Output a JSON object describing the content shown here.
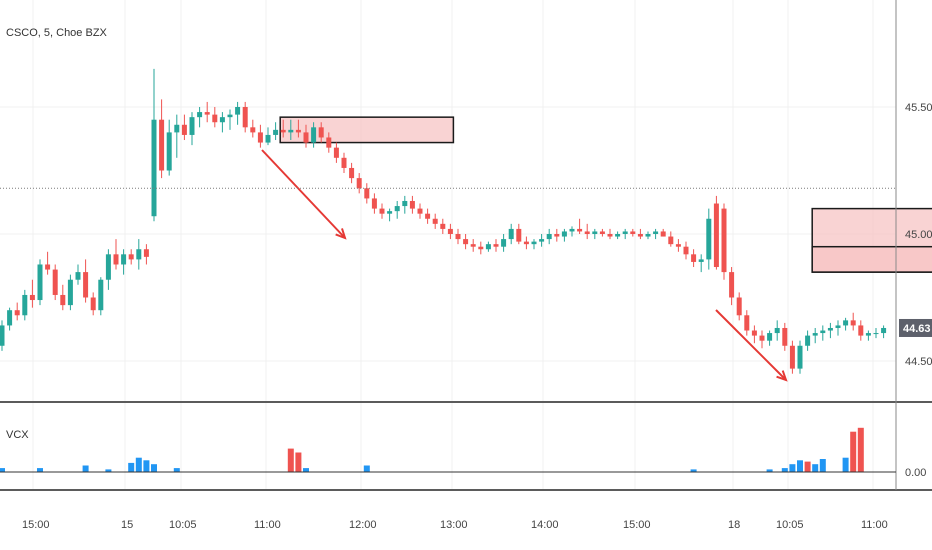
{
  "header": {
    "symbol_line": "CSCO, 5, Choe BZX"
  },
  "volume_panel": {
    "label": "VCX"
  },
  "price_axis": {
    "ticks": [
      "45.50",
      "45.00",
      "44.50"
    ],
    "current_price": "44.63"
  },
  "volume_axis": {
    "ticks": [
      "0.00"
    ]
  },
  "time_axis": {
    "ticks": [
      "15:00",
      "15",
      "10:05",
      "11:00",
      "12:00",
      "13:00",
      "14:00",
      "15:00",
      "18",
      "10:05",
      "11:00"
    ]
  },
  "colors": {
    "up": "#26a69a",
    "down": "#ef5350",
    "zone_fill": "#f7c4c4",
    "zone_border": "#1a1a1a",
    "arrow": "#e53935",
    "volume_blue": "#2196f3",
    "volume_red": "#ef5350",
    "price_tag_bg": "#5d606b"
  },
  "chart_data": {
    "type": "candlestick",
    "title": "CSCO, 5, Choe BZX",
    "ylim": [
      44.3,
      45.85
    ],
    "y_ticks": [
      45.5,
      45.0,
      44.5
    ],
    "current_price": 44.63,
    "reference_price": 45.18,
    "x_ticks": [
      "15:00",
      "15",
      "10:05",
      "11:00",
      "12:00",
      "13:00",
      "14:00",
      "15:00",
      "18",
      "10:05",
      "11:00"
    ],
    "candles": [
      [
        44.56,
        44.66,
        44.54,
        44.64
      ],
      [
        44.64,
        44.71,
        44.62,
        44.7
      ],
      [
        44.7,
        44.73,
        44.66,
        44.68
      ],
      [
        44.68,
        44.78,
        44.66,
        44.76
      ],
      [
        44.76,
        44.82,
        44.71,
        44.74
      ],
      [
        44.74,
        44.9,
        44.72,
        44.88
      ],
      [
        44.88,
        44.93,
        44.84,
        44.86
      ],
      [
        44.86,
        44.88,
        44.74,
        44.76
      ],
      [
        44.76,
        44.8,
        44.7,
        44.72
      ],
      [
        44.72,
        44.84,
        44.7,
        44.82
      ],
      [
        44.82,
        44.88,
        44.8,
        44.85
      ],
      [
        44.85,
        44.9,
        44.73,
        44.75
      ],
      [
        44.75,
        44.77,
        44.68,
        44.7
      ],
      [
        44.7,
        44.83,
        44.68,
        44.82
      ],
      [
        44.82,
        44.94,
        44.78,
        44.92
      ],
      [
        44.92,
        44.98,
        44.86,
        44.88
      ],
      [
        44.88,
        44.94,
        44.84,
        44.92
      ],
      [
        44.92,
        44.94,
        44.88,
        44.9
      ],
      [
        44.9,
        44.98,
        44.86,
        44.94
      ],
      [
        44.94,
        44.96,
        44.88,
        44.91
      ],
      [
        45.07,
        45.65,
        45.05,
        45.45
      ],
      [
        45.45,
        45.53,
        45.22,
        45.25
      ],
      [
        45.25,
        45.45,
        45.23,
        45.4
      ],
      [
        45.4,
        45.47,
        45.3,
        45.43
      ],
      [
        45.43,
        45.47,
        45.37,
        45.39
      ],
      [
        45.39,
        45.48,
        45.35,
        45.46
      ],
      [
        45.46,
        45.5,
        45.42,
        45.48
      ],
      [
        45.48,
        45.52,
        45.44,
        45.47
      ],
      [
        45.47,
        45.5,
        45.42,
        45.44
      ],
      [
        45.44,
        45.48,
        45.4,
        45.46
      ],
      [
        45.46,
        45.49,
        45.41,
        45.47
      ],
      [
        45.47,
        45.52,
        45.43,
        45.5
      ],
      [
        45.5,
        45.52,
        45.4,
        45.42
      ],
      [
        45.42,
        45.45,
        45.38,
        45.4
      ],
      [
        45.4,
        45.43,
        45.34,
        45.36
      ],
      [
        45.36,
        45.42,
        45.35,
        45.39
      ],
      [
        45.39,
        45.44,
        45.37,
        45.41
      ],
      [
        45.41,
        45.45,
        45.38,
        45.4
      ],
      [
        45.4,
        45.45,
        45.37,
        45.41
      ],
      [
        45.41,
        45.45,
        45.38,
        45.4
      ],
      [
        45.4,
        45.43,
        45.34,
        45.36
      ],
      [
        45.36,
        45.44,
        45.34,
        45.42
      ],
      [
        45.42,
        45.44,
        45.36,
        45.38
      ],
      [
        45.38,
        45.4,
        45.32,
        45.34
      ],
      [
        45.34,
        45.36,
        45.28,
        45.3
      ],
      [
        45.3,
        45.32,
        45.24,
        45.26
      ],
      [
        45.26,
        45.28,
        45.2,
        45.22
      ],
      [
        45.22,
        45.24,
        45.16,
        45.18
      ],
      [
        45.18,
        45.2,
        45.12,
        45.14
      ],
      [
        45.14,
        45.16,
        45.08,
        45.1
      ],
      [
        45.1,
        45.12,
        45.06,
        45.08
      ],
      [
        45.08,
        45.1,
        45.05,
        45.09
      ],
      [
        45.09,
        45.13,
        45.06,
        45.11
      ],
      [
        45.11,
        45.15,
        45.08,
        45.13
      ],
      [
        45.13,
        45.15,
        45.08,
        45.1
      ],
      [
        45.1,
        45.12,
        45.06,
        45.08
      ],
      [
        45.08,
        45.1,
        45.04,
        45.06
      ],
      [
        45.06,
        45.08,
        45.02,
        45.04
      ],
      [
        45.04,
        45.06,
        45.0,
        45.02
      ],
      [
        45.02,
        45.04,
        44.98,
        45.0
      ],
      [
        45.0,
        45.02,
        44.96,
        44.98
      ],
      [
        44.98,
        45.0,
        44.94,
        44.96
      ],
      [
        44.96,
        44.98,
        44.93,
        44.95
      ],
      [
        44.95,
        44.97,
        44.92,
        44.94
      ],
      [
        44.94,
        44.97,
        44.93,
        44.96
      ],
      [
        44.96,
        44.98,
        44.93,
        44.95
      ],
      [
        44.95,
        45.0,
        44.93,
        44.98
      ],
      [
        44.98,
        45.04,
        44.96,
        45.02
      ],
      [
        45.02,
        45.04,
        44.96,
        44.97
      ],
      [
        44.97,
        44.99,
        44.94,
        44.96
      ],
      [
        44.96,
        44.98,
        44.94,
        44.97
      ],
      [
        44.97,
        45.0,
        44.95,
        44.98
      ],
      [
        44.98,
        45.02,
        44.96,
        45.0
      ],
      [
        45.0,
        45.02,
        44.97,
        44.99
      ],
      [
        44.99,
        45.02,
        44.97,
        45.01
      ],
      [
        45.01,
        45.03,
        44.99,
        45.02
      ],
      [
        45.02,
        45.06,
        45.0,
        45.01
      ],
      [
        45.01,
        45.04,
        44.98,
        45.0
      ],
      [
        45.0,
        45.02,
        44.98,
        45.01
      ],
      [
        45.01,
        45.02,
        44.99,
        45.0
      ],
      [
        45.0,
        45.02,
        44.98,
        44.99
      ],
      [
        44.99,
        45.01,
        44.98,
        45.0
      ],
      [
        45.0,
        45.02,
        44.98,
        45.01
      ],
      [
        45.01,
        45.02,
        44.99,
        45.0
      ],
      [
        45.0,
        45.02,
        44.98,
        44.99
      ],
      [
        44.99,
        45.01,
        44.98,
        45.0
      ],
      [
        45.0,
        45.02,
        44.98,
        45.01
      ],
      [
        45.01,
        45.02,
        44.99,
        44.99
      ],
      [
        44.99,
        45.01,
        44.95,
        44.96
      ],
      [
        44.96,
        44.98,
        44.93,
        44.95
      ],
      [
        44.95,
        44.97,
        44.9,
        44.92
      ],
      [
        44.92,
        44.94,
        44.87,
        44.89
      ],
      [
        44.89,
        44.92,
        44.85,
        44.9
      ],
      [
        44.9,
        45.1,
        44.86,
        45.06
      ],
      [
        45.12,
        45.15,
        44.86,
        44.87
      ],
      [
        45.1,
        45.12,
        44.82,
        44.85
      ],
      [
        44.85,
        44.87,
        44.72,
        44.75
      ],
      [
        44.75,
        44.77,
        44.66,
        44.68
      ],
      [
        44.68,
        44.7,
        44.6,
        44.62
      ],
      [
        44.62,
        44.64,
        44.57,
        44.6
      ],
      [
        44.6,
        44.62,
        44.55,
        44.58
      ],
      [
        44.58,
        44.62,
        44.56,
        44.61
      ],
      [
        44.61,
        44.66,
        44.58,
        44.63
      ],
      [
        44.63,
        44.65,
        44.54,
        44.56
      ],
      [
        44.56,
        44.58,
        44.45,
        44.47
      ],
      [
        44.47,
        44.58,
        44.45,
        44.56
      ],
      [
        44.56,
        44.62,
        44.54,
        44.6
      ],
      [
        44.6,
        44.63,
        44.57,
        44.61
      ],
      [
        44.61,
        44.64,
        44.58,
        44.62
      ],
      [
        44.62,
        44.65,
        44.59,
        44.63
      ],
      [
        44.63,
        44.66,
        44.6,
        44.64
      ],
      [
        44.64,
        44.67,
        44.62,
        44.66
      ],
      [
        44.66,
        44.69,
        44.62,
        44.64
      ],
      [
        44.64,
        44.66,
        44.58,
        44.6
      ],
      [
        44.6,
        44.62,
        44.58,
        44.61
      ],
      [
        44.61,
        44.63,
        44.59,
        44.61
      ],
      [
        44.61,
        44.64,
        44.59,
        44.63
      ]
    ],
    "zones": [
      {
        "start": 37,
        "end": 59,
        "top": 45.46,
        "bottom": 45.36
      },
      {
        "start": 107,
        "end": 131,
        "top": 45.1,
        "bottom": 44.85
      },
      {
        "start": 107,
        "end": 131,
        "top": 44.95,
        "bottom": 44.85
      }
    ],
    "volume_series": {
      "name": "VCX",
      "ylim": [
        0,
        10
      ],
      "bars": [
        [
          0,
          0.6,
          "blue"
        ],
        [
          5,
          0.6,
          "blue"
        ],
        [
          11,
          1.0,
          "blue"
        ],
        [
          14,
          0.4,
          "blue"
        ],
        [
          17,
          1.4,
          "blue"
        ],
        [
          18,
          2.2,
          "blue"
        ],
        [
          19,
          1.8,
          "blue"
        ],
        [
          20,
          1.2,
          "blue"
        ],
        [
          23,
          0.6,
          "blue"
        ],
        [
          38,
          3.6,
          "red"
        ],
        [
          39,
          3.0,
          "red"
        ],
        [
          40,
          0.6,
          "blue"
        ],
        [
          48,
          1.0,
          "blue"
        ],
        [
          91,
          0.4,
          "blue"
        ],
        [
          101,
          0.4,
          "blue"
        ],
        [
          103,
          0.6,
          "blue"
        ],
        [
          104,
          1.2,
          "blue"
        ],
        [
          105,
          1.8,
          "blue"
        ],
        [
          106,
          1.6,
          "red"
        ],
        [
          107,
          1.2,
          "blue"
        ],
        [
          108,
          2.0,
          "blue"
        ],
        [
          111,
          2.2,
          "blue"
        ],
        [
          112,
          6.2,
          "red"
        ],
        [
          113,
          6.8,
          "red"
        ]
      ]
    }
  }
}
